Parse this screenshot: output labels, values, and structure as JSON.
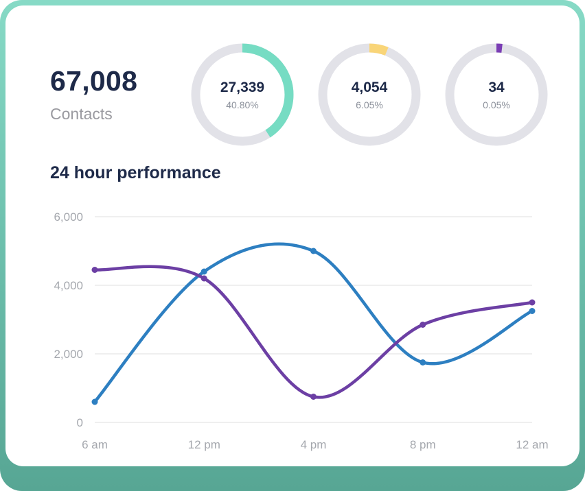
{
  "summary": {
    "value": "67,008",
    "label": "Contacts"
  },
  "performance": {
    "title": "24 hour performance"
  },
  "colors": {
    "accent_teal": "#76dcc3",
    "accent_yellow": "#f9d578",
    "accent_purple": "#7a3db4",
    "line_blue": "#2d7fc1",
    "line_purple": "#6c3fa4",
    "donut_track": "#e2e2e8",
    "gridline": "#eaeaea",
    "text_navy": "#1e2a49",
    "text_gray": "#9a9aa0",
    "card_backdrop": "#6fc2af"
  },
  "chart_data": [
    {
      "type": "pie",
      "subtype": "donut",
      "label": "27,339",
      "value": 27339,
      "percent": 40.8,
      "percent_label": "40.80%",
      "color": "#76dcc3",
      "track_color": "#e2e2e8"
    },
    {
      "type": "pie",
      "subtype": "donut",
      "label": "4,054",
      "value": 4054,
      "percent": 6.05,
      "percent_label": "6.05%",
      "color": "#f9d578",
      "track_color": "#e2e2e8"
    },
    {
      "type": "pie",
      "subtype": "donut",
      "label": "34",
      "value": 34,
      "percent": 0.05,
      "percent_label": "0.05%",
      "color": "#7a3db4",
      "track_color": "#e2e2e8"
    },
    {
      "type": "line",
      "title": "24 hour performance",
      "categories": [
        "6 am",
        "12 pm",
        "4 pm",
        "8 pm",
        "12 am"
      ],
      "series": [
        {
          "name": "blue-series",
          "color": "#2d7fc1",
          "values": [
            600,
            4400,
            5000,
            1750,
            3250
          ]
        },
        {
          "name": "purple-series",
          "color": "#6c3fa4",
          "values": [
            4450,
            4200,
            750,
            2850,
            3500
          ]
        }
      ],
      "xlabel": "",
      "ylabel": "",
      "ylim": [
        0,
        6000
      ],
      "yticks": [
        6000,
        4000,
        2000,
        0
      ],
      "ytick_labels": [
        "6,000",
        "4,000",
        "2,000",
        "0"
      ],
      "grid": true,
      "legend": "none"
    }
  ]
}
